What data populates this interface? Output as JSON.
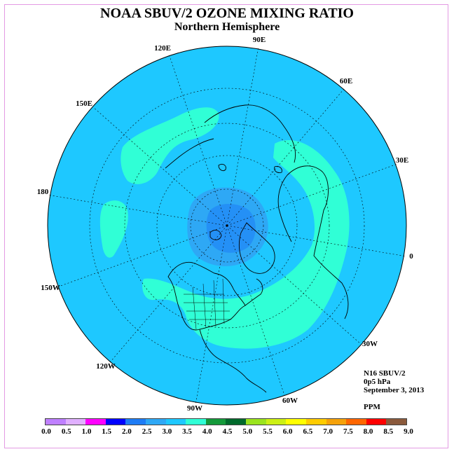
{
  "title": "NOAA SBUV/2 OZONE MIXING RATIO",
  "subtitle": "Northern Hemisphere",
  "info": {
    "satellite": "N16 SBUV/2",
    "level": "0p5 hPa",
    "date": "September 3, 2013",
    "units": "PPM"
  },
  "longitude_labels": [
    "90E",
    "60E",
    "30E",
    "0",
    "30W",
    "60W",
    "90W",
    "120W",
    "150W",
    "180",
    "150E",
    "120E"
  ],
  "colorbar": {
    "ticks": [
      "0.0",
      "0.5",
      "1.0",
      "1.5",
      "2.0",
      "2.5",
      "3.0",
      "3.5",
      "4.0",
      "4.5",
      "5.0",
      "5.5",
      "6.0",
      "6.5",
      "7.0",
      "7.5",
      "8.0",
      "8.5",
      "9.0"
    ],
    "colors": [
      "#bf80ff",
      "#e0b0ff",
      "#ff00ff",
      "#0000ff",
      "#1e7cf5",
      "#2ea8f5",
      "#1ec8ff",
      "#30ffd6",
      "#149a3a",
      "#006a2c",
      "#9be41e",
      "#ccf015",
      "#ffff00",
      "#ffcc00",
      "#f5a20a",
      "#ff6600",
      "#ff0000",
      "#8b5a3c"
    ]
  },
  "map_colors": {
    "background_field": "#1ec8ff",
    "band_3_5_to_4_0": "#30ffd6",
    "band_2_5_to_3_0": "#2ea8f5",
    "band_2_0_to_2_5": "#1e7cf5",
    "coastline": "#000000"
  }
}
